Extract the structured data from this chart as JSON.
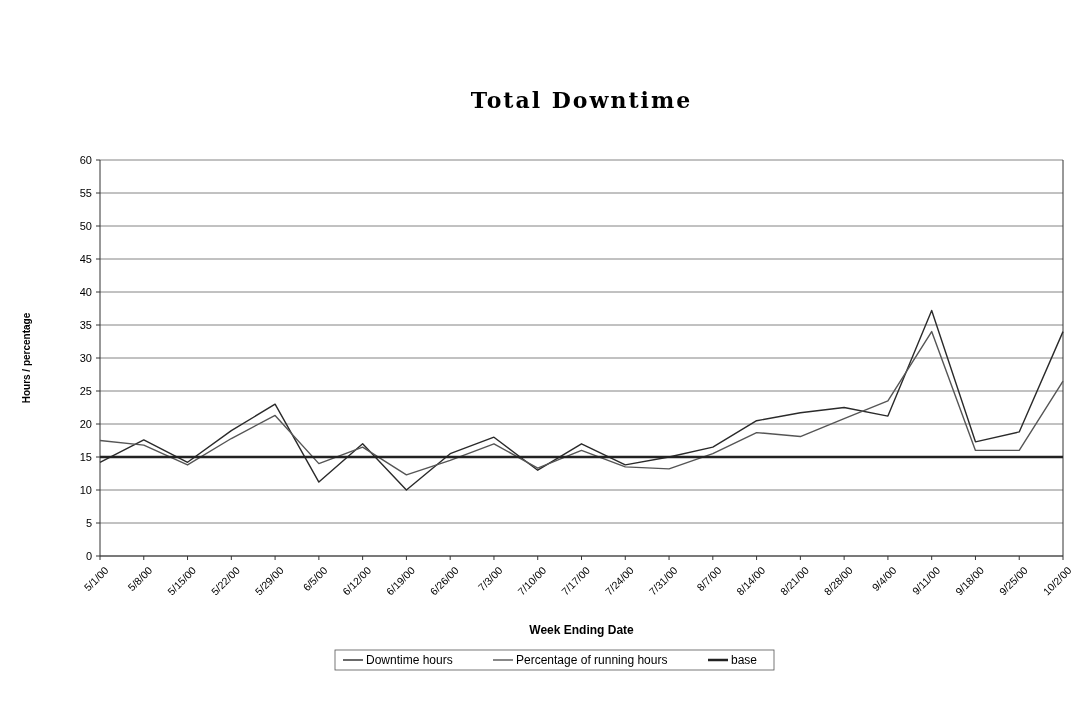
{
  "chart_data": {
    "type": "line",
    "title": "Total Downtime",
    "xlabel": "Week Ending Date",
    "ylabel": "Hours / percentage",
    "categories": [
      "5/1/00",
      "5/8/00",
      "5/15/00",
      "5/22/00",
      "5/29/00",
      "6/5/00",
      "6/12/00",
      "6/19/00",
      "6/26/00",
      "7/3/00",
      "7/10/00",
      "7/17/00",
      "7/24/00",
      "7/31/00",
      "8/7/00",
      "8/14/00",
      "8/21/00",
      "8/28/00",
      "9/4/00",
      "9/11/00",
      "9/18/00",
      "9/25/00",
      "10/2/00"
    ],
    "series": [
      {
        "name": "Downtime hours",
        "color": "#2a2a2a",
        "values": [
          14.2,
          17.6,
          14.2,
          19,
          23,
          11.2,
          17,
          10,
          15.5,
          18,
          13,
          17,
          13.8,
          15,
          16.5,
          20.5,
          21.7,
          22.5,
          21.2,
          37.2,
          17.3,
          18.8,
          34
        ]
      },
      {
        "name": "Percentage of running hours",
        "color": "#555555",
        "values": [
          17.5,
          16.8,
          13.8,
          17.8,
          21.3,
          14,
          16.5,
          12.3,
          14.5,
          17,
          13.3,
          16,
          13.5,
          13.2,
          15.5,
          18.7,
          18.1,
          20.8,
          23.5,
          34,
          16,
          16,
          26.5
        ]
      },
      {
        "name": "base",
        "color": "#222222",
        "values": [
          15,
          15,
          15,
          15,
          15,
          15,
          15,
          15,
          15,
          15,
          15,
          15,
          15,
          15,
          15,
          15,
          15,
          15,
          15,
          15,
          15,
          15,
          15
        ]
      }
    ],
    "ylim": [
      0,
      60
    ],
    "yticks": [
      0,
      5,
      10,
      15,
      20,
      25,
      30,
      35,
      40,
      45,
      50,
      55,
      60
    ],
    "grid": "y",
    "legend": "bottom",
    "marker": "none",
    "line_style": "solid"
  }
}
